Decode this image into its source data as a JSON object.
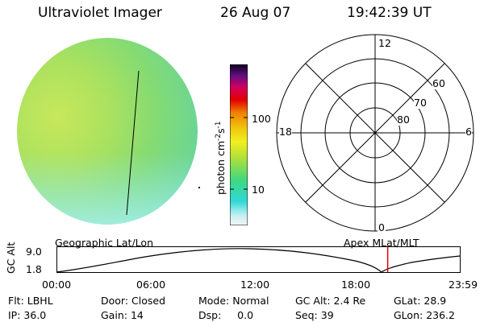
{
  "header": {
    "instrument": "Ultraviolet Imager",
    "date": "26 Aug 07",
    "time": "19:42:39 UT"
  },
  "colorbar": {
    "label_text": "photon cm",
    "label_sup1": "-2",
    "label_mid": "s",
    "label_sup2": "-1",
    "ticks": [
      "100",
      "10"
    ]
  },
  "polar_plot": {
    "mlt_labels": [
      "12",
      "18",
      "6",
      "0"
    ],
    "lat_labels": [
      "60",
      "70",
      "80"
    ]
  },
  "timeline": {
    "left_title": "Geographic Lat/Lon",
    "right_title": "Apex MLat/MLT",
    "y_axis_label": "GC Alt",
    "y_ticks": [
      "9.0",
      "1.8"
    ],
    "x_ticks": [
      "00:00",
      "06:00",
      "12:00",
      "18:00",
      "23:59"
    ],
    "current_time_hours": 19.71,
    "marker_color": "#e00000"
  },
  "status": {
    "row1": [
      {
        "label": "Flt:",
        "value": "LBHL"
      },
      {
        "label": "Door:",
        "value": "Closed"
      },
      {
        "label": "Mode:",
        "value": "Normal"
      },
      {
        "label": "GC Alt:",
        "value": "2.4 Re"
      },
      {
        "label": "GLat:",
        "value": "28.9"
      }
    ],
    "row2": [
      {
        "label": "IP:",
        "value": "36.0"
      },
      {
        "label": "Gain:",
        "value": "14"
      },
      {
        "label": "Dsp:",
        "value": "0.0"
      },
      {
        "label": "Seq:",
        "value": "39"
      },
      {
        "label": "GLon:",
        "value": "236.2"
      }
    ]
  }
}
